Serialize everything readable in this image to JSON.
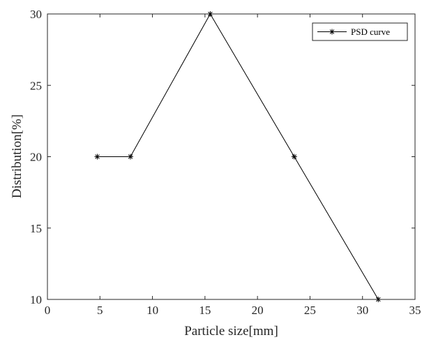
{
  "chart_data": {
    "type": "line",
    "xlabel": "Particle size[mm]",
    "ylabel": "Distribution[%]",
    "xlim": [
      0,
      35
    ],
    "ylim": [
      10,
      30
    ],
    "xticks": [
      0,
      5,
      10,
      15,
      20,
      25,
      30,
      35
    ],
    "yticks": [
      10,
      15,
      20,
      25,
      30
    ],
    "grid": false,
    "legend_position": "top-right",
    "series": [
      {
        "name": "PSD curve",
        "marker": "asterisk",
        "color": "#000000",
        "x": [
          4.75,
          7.9,
          15.5,
          23.5,
          31.5
        ],
        "y": [
          20,
          20,
          30,
          20,
          10
        ]
      }
    ]
  }
}
